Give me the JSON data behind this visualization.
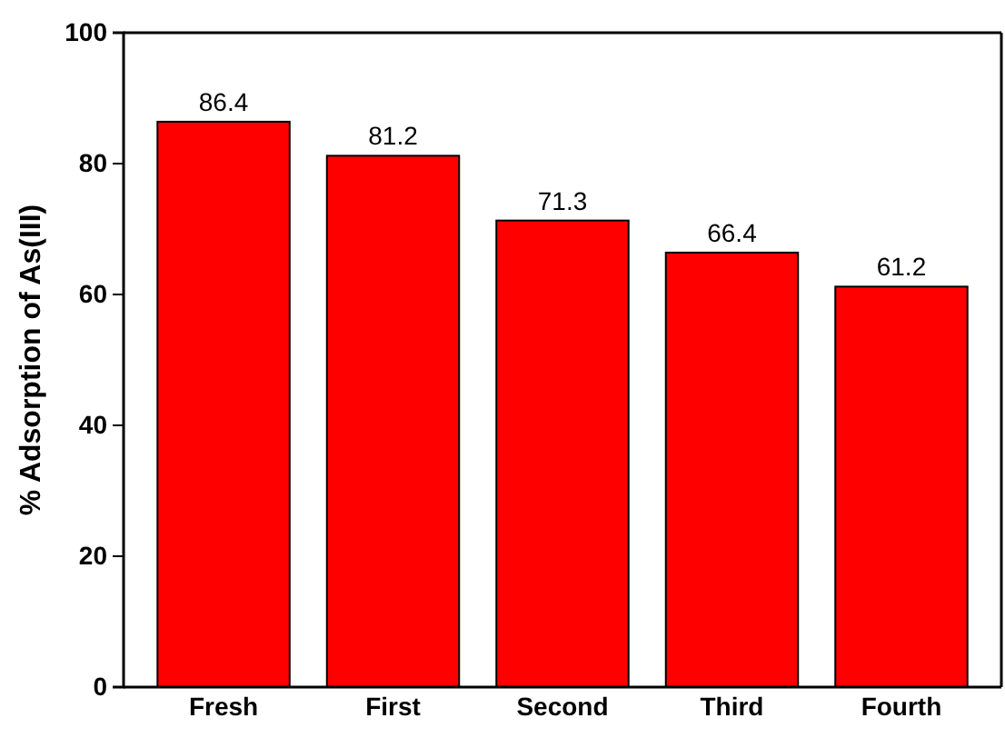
{
  "chart_data": {
    "type": "bar",
    "ylabel": "% Adsorption of As(III)",
    "categories": [
      "Fresh",
      "First",
      "Second",
      "Third",
      "Fourth"
    ],
    "values": [
      86.4,
      81.2,
      71.3,
      66.4,
      61.2
    ],
    "color": "#ff0000",
    "ylim": [
      0,
      100
    ],
    "yticks": [
      0,
      20,
      40,
      60,
      80,
      100
    ],
    "data_labels": true,
    "grid": false
  }
}
